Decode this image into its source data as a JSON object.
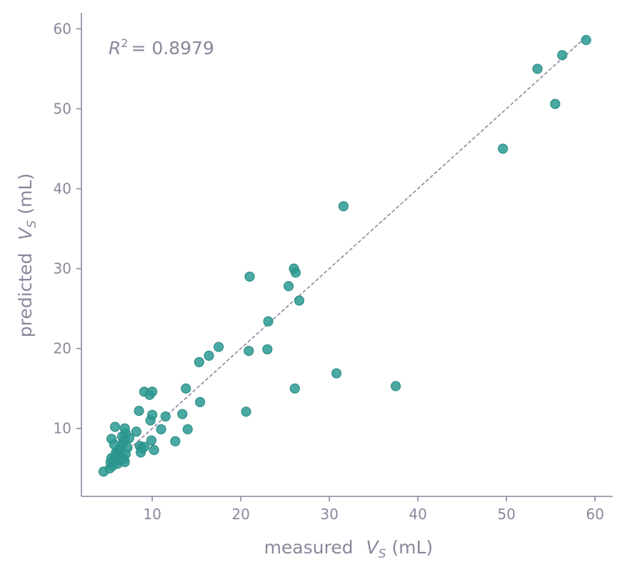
{
  "chart_data": {
    "type": "scatter",
    "title": "",
    "xlabel_main": "measured",
    "ylabel_main": "predicted",
    "label_var": "V",
    "label_sub": "S",
    "label_unit": "(mL)",
    "annotation_base": "R",
    "annotation_exp": "2",
    "annotation_value": "= 0.8979",
    "xlim": [
      2,
      62
    ],
    "ylim": [
      1.5,
      62
    ],
    "xticks": [
      10,
      20,
      30,
      40,
      50,
      60
    ],
    "yticks": [
      10,
      20,
      30,
      40,
      50,
      60
    ],
    "grid": false,
    "reference_line": {
      "style": "dashed",
      "from": [
        5,
        5
      ],
      "to": [
        59,
        59
      ]
    },
    "colors": {
      "marker": "#2a9a92",
      "axis": "#8a879c"
    },
    "series": [
      {
        "points": [
          [
            4.5,
            4.6
          ],
          [
            5.2,
            5.0
          ],
          [
            5.5,
            5.3
          ],
          [
            5.3,
            5.8
          ],
          [
            5.6,
            6.0
          ],
          [
            5.4,
            6.3
          ],
          [
            5.8,
            6.5
          ],
          [
            6.0,
            6.8
          ],
          [
            5.9,
            7.0
          ],
          [
            6.2,
            7.2
          ],
          [
            6.1,
            5.6
          ],
          [
            6.4,
            6.0
          ],
          [
            6.6,
            6.4
          ],
          [
            6.3,
            7.5
          ],
          [
            6.5,
            7.8
          ],
          [
            5.7,
            8.0
          ],
          [
            6.8,
            6.2
          ],
          [
            7.0,
            6.8
          ],
          [
            6.9,
            5.8
          ],
          [
            7.2,
            7.6
          ],
          [
            6.7,
            8.2
          ],
          [
            5.4,
            8.7
          ],
          [
            6.6,
            9.0
          ],
          [
            6.9,
            8.6
          ],
          [
            7.4,
            8.8
          ],
          [
            7.0,
            9.4
          ],
          [
            5.8,
            10.2
          ],
          [
            6.9,
            10.0
          ],
          [
            8.2,
            9.6
          ],
          [
            8.6,
            7.8
          ],
          [
            8.8,
            7.5
          ],
          [
            8.7,
            7.0
          ],
          [
            9.1,
            7.7
          ],
          [
            9.9,
            8.5
          ],
          [
            10.2,
            7.3
          ],
          [
            11.0,
            9.9
          ],
          [
            9.8,
            11.0
          ],
          [
            10.0,
            11.7
          ],
          [
            11.5,
            11.5
          ],
          [
            8.5,
            12.2
          ],
          [
            9.1,
            14.6
          ],
          [
            9.7,
            14.2
          ],
          [
            10.0,
            14.6
          ],
          [
            12.6,
            8.4
          ],
          [
            13.4,
            11.8
          ],
          [
            14.0,
            9.9
          ],
          [
            13.8,
            15.0
          ],
          [
            15.4,
            13.3
          ],
          [
            15.3,
            18.3
          ],
          [
            16.4,
            19.1
          ],
          [
            17.5,
            20.2
          ],
          [
            20.6,
            12.1
          ],
          [
            20.9,
            19.7
          ],
          [
            23.0,
            19.9
          ],
          [
            23.1,
            23.4
          ],
          [
            21.0,
            29.0
          ],
          [
            25.4,
            27.8
          ],
          [
            26.0,
            30.0
          ],
          [
            26.2,
            29.5
          ],
          [
            26.6,
            26.0
          ],
          [
            26.1,
            15.0
          ],
          [
            30.8,
            16.9
          ],
          [
            31.6,
            37.8
          ],
          [
            37.5,
            15.3
          ],
          [
            49.6,
            45.0
          ],
          [
            53.5,
            55.0
          ],
          [
            55.5,
            50.6
          ],
          [
            56.3,
            56.7
          ],
          [
            59.0,
            58.6
          ]
        ]
      }
    ]
  }
}
